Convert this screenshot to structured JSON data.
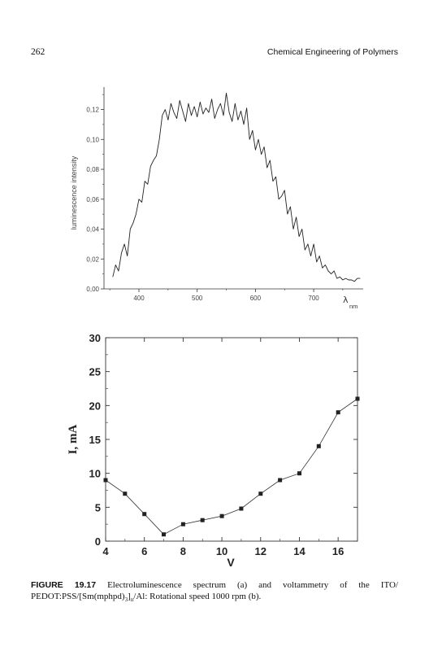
{
  "header": {
    "page_number": "262",
    "book_title": "Chemical Engineering of Polymers"
  },
  "caption": {
    "label": "FIGURE 19.17",
    "text_main": "Electroluminescence spectrum (a) and voltammetry of the ITO/ PEDOT:PSS/[Sm(mphpd)",
    "sub_3": "3",
    "sub_n": "n",
    "text_end": "/Al: Rotational speed 1000 rpm (b)."
  },
  "chart_data": [
    {
      "type": "line",
      "title": "",
      "xlabel": "λ nm",
      "xlabel_symbol": "λ",
      "xlabel_unit": "nm",
      "ylabel": "luminescence intensity",
      "xlim": [
        340,
        785
      ],
      "ylim": [
        0,
        0.135
      ],
      "x_ticks": [
        400,
        500,
        600,
        700
      ],
      "y_ticks": [
        0.0,
        0.02,
        0.04,
        0.06,
        0.08,
        0.1,
        0.12
      ],
      "y_tick_labels": [
        "0,00",
        "0,02",
        "0,04",
        "0,06",
        "0,08",
        "0,10",
        "0,12"
      ],
      "grid": false,
      "series": [
        {
          "x": [
            355,
            360,
            365,
            370,
            375,
            380,
            385,
            390,
            395,
            400,
            405,
            410,
            415,
            420,
            425,
            430,
            435,
            440,
            445,
            450,
            455,
            460,
            465,
            470,
            475,
            480,
            485,
            490,
            495,
            500,
            505,
            510,
            515,
            520,
            525,
            530,
            535,
            540,
            545,
            550,
            555,
            560,
            565,
            570,
            575,
            580,
            585,
            590,
            595,
            600,
            605,
            610,
            615,
            620,
            625,
            630,
            635,
            640,
            645,
            650,
            655,
            660,
            665,
            670,
            675,
            680,
            685,
            690,
            695,
            700,
            705,
            710,
            715,
            720,
            725,
            730,
            735,
            740,
            745,
            750,
            755,
            760,
            765,
            770,
            775,
            780
          ],
          "y": [
            0.008,
            0.016,
            0.012,
            0.024,
            0.03,
            0.022,
            0.04,
            0.044,
            0.05,
            0.06,
            0.058,
            0.072,
            0.07,
            0.082,
            0.086,
            0.089,
            0.1,
            0.116,
            0.12,
            0.113,
            0.124,
            0.118,
            0.114,
            0.126,
            0.119,
            0.112,
            0.124,
            0.116,
            0.122,
            0.115,
            0.125,
            0.117,
            0.121,
            0.118,
            0.127,
            0.114,
            0.12,
            0.124,
            0.116,
            0.131,
            0.118,
            0.112,
            0.124,
            0.113,
            0.119,
            0.11,
            0.121,
            0.1,
            0.106,
            0.093,
            0.1,
            0.09,
            0.095,
            0.081,
            0.086,
            0.072,
            0.075,
            0.06,
            0.062,
            0.066,
            0.05,
            0.055,
            0.04,
            0.048,
            0.035,
            0.04,
            0.026,
            0.03,
            0.022,
            0.03,
            0.018,
            0.022,
            0.014,
            0.016,
            0.012,
            0.01,
            0.012,
            0.007,
            0.008,
            0.006,
            0.007,
            0.006,
            0.006,
            0.005,
            0.007,
            0.007
          ]
        }
      ]
    },
    {
      "type": "line",
      "title": "",
      "xlabel": "V",
      "ylabel": "I, mA",
      "xlim": [
        4,
        17
      ],
      "ylim": [
        0,
        30
      ],
      "x_ticks": [
        4,
        6,
        8,
        10,
        12,
        14,
        16
      ],
      "y_ticks": [
        0,
        5,
        10,
        15,
        20,
        25,
        30
      ],
      "grid": false,
      "markers": "square",
      "series": [
        {
          "x": [
            4,
            5,
            6,
            7,
            8,
            9,
            10,
            11,
            12,
            13,
            14,
            15,
            16,
            17
          ],
          "y": [
            9.0,
            7.0,
            4.0,
            1.0,
            2.5,
            3.1,
            3.7,
            4.8,
            7.0,
            9.0,
            10.0,
            14.0,
            19.0,
            21.0
          ]
        }
      ]
    }
  ]
}
